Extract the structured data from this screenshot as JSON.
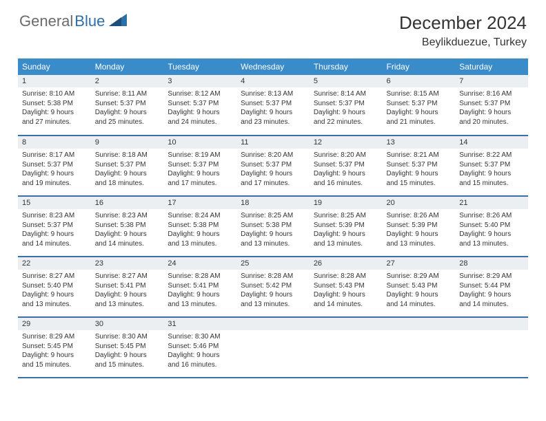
{
  "logo": {
    "general": "General",
    "blue": "Blue"
  },
  "title": "December 2024",
  "location": "Beylikduezue, Turkey",
  "colors": {
    "header_bg": "#3a8bc9",
    "header_text": "#ffffff",
    "daynum_bg": "#eceff1",
    "row_border": "#3a6ea5",
    "logo_gray": "#6b6b6b",
    "logo_blue": "#2f6fa8"
  },
  "day_headers": [
    "Sunday",
    "Monday",
    "Tuesday",
    "Wednesday",
    "Thursday",
    "Friday",
    "Saturday"
  ],
  "weeks": [
    [
      {
        "n": "1",
        "sr": "Sunrise: 8:10 AM",
        "ss": "Sunset: 5:38 PM",
        "dl": "Daylight: 9 hours and 27 minutes."
      },
      {
        "n": "2",
        "sr": "Sunrise: 8:11 AM",
        "ss": "Sunset: 5:37 PM",
        "dl": "Daylight: 9 hours and 25 minutes."
      },
      {
        "n": "3",
        "sr": "Sunrise: 8:12 AM",
        "ss": "Sunset: 5:37 PM",
        "dl": "Daylight: 9 hours and 24 minutes."
      },
      {
        "n": "4",
        "sr": "Sunrise: 8:13 AM",
        "ss": "Sunset: 5:37 PM",
        "dl": "Daylight: 9 hours and 23 minutes."
      },
      {
        "n": "5",
        "sr": "Sunrise: 8:14 AM",
        "ss": "Sunset: 5:37 PM",
        "dl": "Daylight: 9 hours and 22 minutes."
      },
      {
        "n": "6",
        "sr": "Sunrise: 8:15 AM",
        "ss": "Sunset: 5:37 PM",
        "dl": "Daylight: 9 hours and 21 minutes."
      },
      {
        "n": "7",
        "sr": "Sunrise: 8:16 AM",
        "ss": "Sunset: 5:37 PM",
        "dl": "Daylight: 9 hours and 20 minutes."
      }
    ],
    [
      {
        "n": "8",
        "sr": "Sunrise: 8:17 AM",
        "ss": "Sunset: 5:37 PM",
        "dl": "Daylight: 9 hours and 19 minutes."
      },
      {
        "n": "9",
        "sr": "Sunrise: 8:18 AM",
        "ss": "Sunset: 5:37 PM",
        "dl": "Daylight: 9 hours and 18 minutes."
      },
      {
        "n": "10",
        "sr": "Sunrise: 8:19 AM",
        "ss": "Sunset: 5:37 PM",
        "dl": "Daylight: 9 hours and 17 minutes."
      },
      {
        "n": "11",
        "sr": "Sunrise: 8:20 AM",
        "ss": "Sunset: 5:37 PM",
        "dl": "Daylight: 9 hours and 17 minutes."
      },
      {
        "n": "12",
        "sr": "Sunrise: 8:20 AM",
        "ss": "Sunset: 5:37 PM",
        "dl": "Daylight: 9 hours and 16 minutes."
      },
      {
        "n": "13",
        "sr": "Sunrise: 8:21 AM",
        "ss": "Sunset: 5:37 PM",
        "dl": "Daylight: 9 hours and 15 minutes."
      },
      {
        "n": "14",
        "sr": "Sunrise: 8:22 AM",
        "ss": "Sunset: 5:37 PM",
        "dl": "Daylight: 9 hours and 15 minutes."
      }
    ],
    [
      {
        "n": "15",
        "sr": "Sunrise: 8:23 AM",
        "ss": "Sunset: 5:37 PM",
        "dl": "Daylight: 9 hours and 14 minutes."
      },
      {
        "n": "16",
        "sr": "Sunrise: 8:23 AM",
        "ss": "Sunset: 5:38 PM",
        "dl": "Daylight: 9 hours and 14 minutes."
      },
      {
        "n": "17",
        "sr": "Sunrise: 8:24 AM",
        "ss": "Sunset: 5:38 PM",
        "dl": "Daylight: 9 hours and 13 minutes."
      },
      {
        "n": "18",
        "sr": "Sunrise: 8:25 AM",
        "ss": "Sunset: 5:38 PM",
        "dl": "Daylight: 9 hours and 13 minutes."
      },
      {
        "n": "19",
        "sr": "Sunrise: 8:25 AM",
        "ss": "Sunset: 5:39 PM",
        "dl": "Daylight: 9 hours and 13 minutes."
      },
      {
        "n": "20",
        "sr": "Sunrise: 8:26 AM",
        "ss": "Sunset: 5:39 PM",
        "dl": "Daylight: 9 hours and 13 minutes."
      },
      {
        "n": "21",
        "sr": "Sunrise: 8:26 AM",
        "ss": "Sunset: 5:40 PM",
        "dl": "Daylight: 9 hours and 13 minutes."
      }
    ],
    [
      {
        "n": "22",
        "sr": "Sunrise: 8:27 AM",
        "ss": "Sunset: 5:40 PM",
        "dl": "Daylight: 9 hours and 13 minutes."
      },
      {
        "n": "23",
        "sr": "Sunrise: 8:27 AM",
        "ss": "Sunset: 5:41 PM",
        "dl": "Daylight: 9 hours and 13 minutes."
      },
      {
        "n": "24",
        "sr": "Sunrise: 8:28 AM",
        "ss": "Sunset: 5:41 PM",
        "dl": "Daylight: 9 hours and 13 minutes."
      },
      {
        "n": "25",
        "sr": "Sunrise: 8:28 AM",
        "ss": "Sunset: 5:42 PM",
        "dl": "Daylight: 9 hours and 13 minutes."
      },
      {
        "n": "26",
        "sr": "Sunrise: 8:28 AM",
        "ss": "Sunset: 5:43 PM",
        "dl": "Daylight: 9 hours and 14 minutes."
      },
      {
        "n": "27",
        "sr": "Sunrise: 8:29 AM",
        "ss": "Sunset: 5:43 PM",
        "dl": "Daylight: 9 hours and 14 minutes."
      },
      {
        "n": "28",
        "sr": "Sunrise: 8:29 AM",
        "ss": "Sunset: 5:44 PM",
        "dl": "Daylight: 9 hours and 14 minutes."
      }
    ],
    [
      {
        "n": "29",
        "sr": "Sunrise: 8:29 AM",
        "ss": "Sunset: 5:45 PM",
        "dl": "Daylight: 9 hours and 15 minutes."
      },
      {
        "n": "30",
        "sr": "Sunrise: 8:30 AM",
        "ss": "Sunset: 5:45 PM",
        "dl": "Daylight: 9 hours and 15 minutes."
      },
      {
        "n": "31",
        "sr": "Sunrise: 8:30 AM",
        "ss": "Sunset: 5:46 PM",
        "dl": "Daylight: 9 hours and 16 minutes."
      },
      null,
      null,
      null,
      null
    ]
  ]
}
